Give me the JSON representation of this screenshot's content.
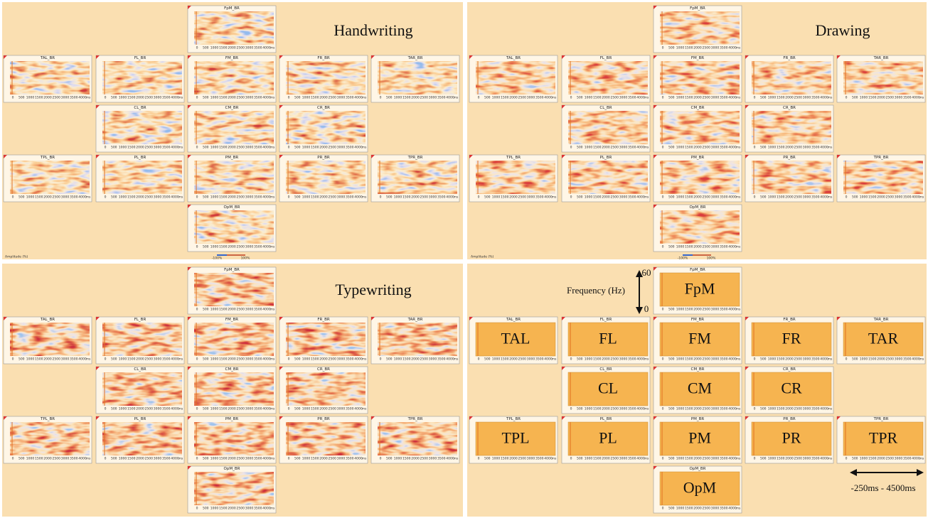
{
  "panels": [
    {
      "title": "Handwriting"
    },
    {
      "title": "Drawing"
    },
    {
      "title": "Typewriting"
    }
  ],
  "electrodes": [
    {
      "map": "FpM_BR",
      "name": "FpM"
    },
    {
      "map": "TAL_BR",
      "name": "TAL"
    },
    {
      "map": "FL_BR",
      "name": "FL"
    },
    {
      "map": "FM_BR",
      "name": "FM"
    },
    {
      "map": "FR_BR",
      "name": "FR"
    },
    {
      "map": "TAR_BR",
      "name": "TAR"
    },
    {
      "map": "CL_BR",
      "name": "CL"
    },
    {
      "map": "CM_BR",
      "name": "CM"
    },
    {
      "map": "CR_BR",
      "name": "CR"
    },
    {
      "map": "TPL_BR",
      "name": "TPL"
    },
    {
      "map": "PL_BR",
      "name": "PL"
    },
    {
      "map": "PM_BR",
      "name": "PM"
    },
    {
      "map": "PR_BR",
      "name": "PR"
    },
    {
      "map": "TPR_BR",
      "name": "TPR"
    },
    {
      "map": "OpM_BR",
      "name": "OpM"
    }
  ],
  "time_ticks": [
    0,
    500,
    1000,
    1500,
    2000,
    2500,
    3000,
    3500,
    4000
  ],
  "time_unit": "ms",
  "amplitude_label": "Amplitude (%)",
  "colorbar": [
    "-100%",
    "100%"
  ],
  "key": {
    "axis_label": "Frequency (Hz)",
    "y_top": 60,
    "y_bottom": 0,
    "time_range": "-250ms - 4500ms"
  }
}
